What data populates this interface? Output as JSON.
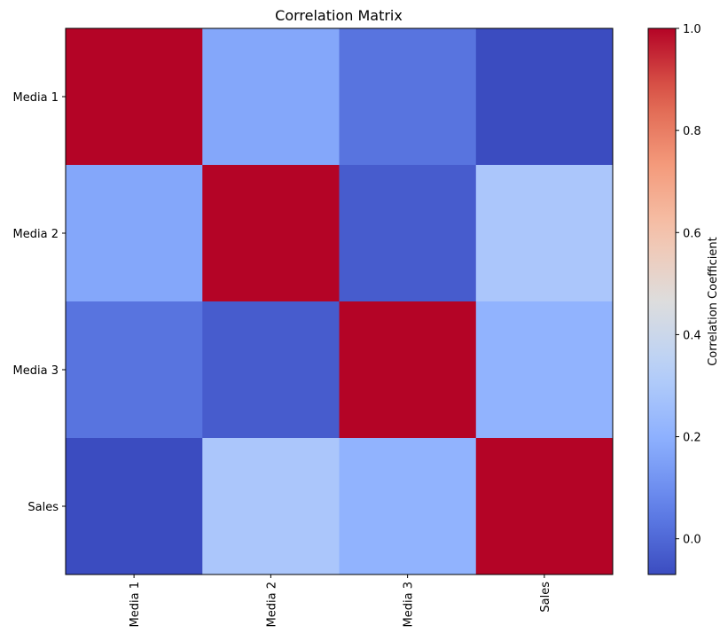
{
  "chart_data": {
    "type": "heatmap",
    "title": "Correlation Matrix",
    "row_labels": [
      "Media 1",
      "Media 2",
      "Media 3",
      "Sales"
    ],
    "col_labels": [
      "Media 1",
      "Media 2",
      "Media 3",
      "Sales"
    ],
    "values": [
      [
        1.0,
        0.17,
        0.03,
        -0.07
      ],
      [
        0.17,
        1.0,
        -0.03,
        0.29
      ],
      [
        0.03,
        -0.03,
        1.0,
        0.21
      ],
      [
        -0.07,
        0.29,
        0.21,
        1.0
      ]
    ],
    "colormap": "coolwarm",
    "vmin": -0.07,
    "vmax": 1.0,
    "colorbar": {
      "label": "Correlation Coefficient",
      "ticks": [
        0.0,
        0.2,
        0.4,
        0.6,
        0.8,
        1.0
      ],
      "tick_labels": [
        "0.0",
        "0.2",
        "0.4",
        "0.6",
        "0.8",
        "1.0"
      ]
    },
    "xtick_rotation": 90,
    "grid": false
  }
}
